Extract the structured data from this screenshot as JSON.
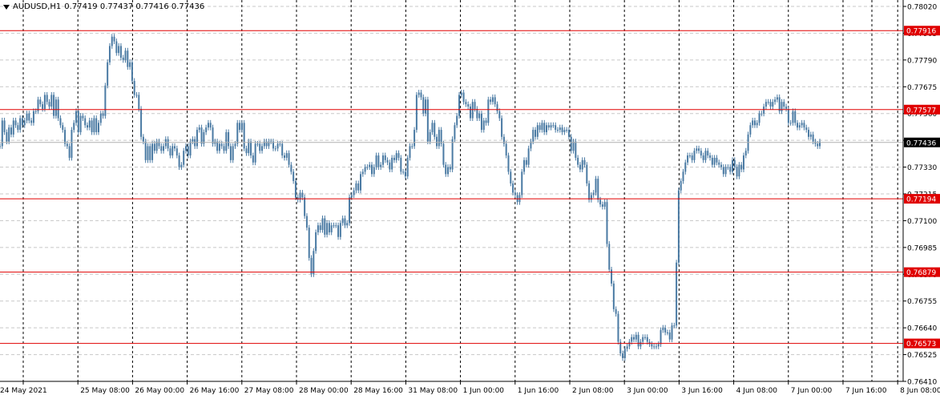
{
  "header": {
    "symbol": "AUDUSD,H1",
    "ohlc": "0.77419 0.77437 0.77416 0.77436"
  },
  "colors": {
    "background": "#ffffff",
    "grid": "#c8c8c8",
    "candle": "#4a7aa3",
    "level_line": "#e00000",
    "price_tag": "#000000",
    "axis": "#000000"
  },
  "chart_data": {
    "type": "candlestick",
    "symbol": "AUDUSD",
    "timeframe": "H1",
    "grid": true,
    "ylim": [
      0.7641,
      0.7802
    ],
    "y_ticks": [
      "0.78020",
      "0.77905",
      "0.77790",
      "0.77675",
      "0.77560",
      "0.77445",
      "0.77330",
      "0.77215",
      "0.77100",
      "0.76985",
      "0.76870",
      "0.76755",
      "0.76640",
      "0.76525",
      "0.76410"
    ],
    "x_ticks": [
      "24 May 2021",
      "25 May 08:00",
      "26 May 00:00",
      "26 May 16:00",
      "27 May 08:00",
      "28 May 00:00",
      "28 May 16:00",
      "31 May 08:00",
      "1 Jun 00:00",
      "1 Jun 16:00",
      "2 Jun 08:00",
      "3 Jun 00:00",
      "3 Jun 16:00",
      "4 Jun 08:00",
      "7 Jun 00:00",
      "7 Jun 16:00",
      "8 Jun 08:00"
    ],
    "current_price": "0.77436",
    "levels": [
      "0.77916",
      "0.77577",
      "0.77194",
      "0.76879",
      "0.76573"
    ],
    "series": [
      {
        "close": [
          0.7742,
          0.7753,
          0.7748,
          0.7744,
          0.775,
          0.7747,
          0.7753,
          0.7751,
          0.7749,
          0.7754,
          0.7751,
          0.7753,
          0.7756,
          0.7753,
          0.7752,
          0.7757,
          0.7757,
          0.7762,
          0.776,
          0.7758,
          0.7764,
          0.7761,
          0.7759,
          0.7764,
          0.7755,
          0.7762,
          0.7754,
          0.7751,
          0.7749,
          0.7743,
          0.7742,
          0.7737,
          0.7749,
          0.7752,
          0.7757,
          0.7748,
          0.7755,
          0.7754,
          0.7751,
          0.775,
          0.7753,
          0.7748,
          0.7754,
          0.7748,
          0.7752,
          0.7756,
          0.7755,
          0.7768,
          0.7778,
          0.7785,
          0.7789,
          0.7787,
          0.7782,
          0.7785,
          0.778,
          0.7779,
          0.7783,
          0.7776,
          0.7778,
          0.777,
          0.7764,
          0.7764,
          0.7758,
          0.7746,
          0.7744,
          0.7736,
          0.7742,
          0.7736,
          0.7743,
          0.774,
          0.7744,
          0.7742,
          0.774,
          0.7742,
          0.7745,
          0.7741,
          0.7738,
          0.7742,
          0.7741,
          0.7738,
          0.7733,
          0.7734,
          0.774,
          0.7742,
          0.7738,
          0.7744,
          0.7745,
          0.7742,
          0.7749,
          0.775,
          0.7743,
          0.7748,
          0.775,
          0.7752,
          0.775,
          0.7743,
          0.7744,
          0.774,
          0.7743,
          0.7742,
          0.774,
          0.7748,
          0.7742,
          0.7736,
          0.7742,
          0.7743,
          0.7752,
          0.7749,
          0.7752,
          0.7741,
          0.7739,
          0.7744,
          0.7738,
          0.7735,
          0.7743,
          0.7743,
          0.774,
          0.7742,
          0.7744,
          0.7742,
          0.7744,
          0.7744,
          0.7741,
          0.7741,
          0.7743,
          0.7743,
          0.7738,
          0.7737,
          0.7739,
          0.7734,
          0.7731,
          0.7727,
          0.772,
          0.7719,
          0.7722,
          0.772,
          0.7712,
          0.7707,
          0.7694,
          0.7687,
          0.7697,
          0.7705,
          0.7708,
          0.7706,
          0.7711,
          0.7704,
          0.7709,
          0.7705,
          0.7708,
          0.7708,
          0.7708,
          0.7703,
          0.7709,
          0.7711,
          0.7708,
          0.7709,
          0.772,
          0.7721,
          0.7723,
          0.7726,
          0.7723,
          0.773,
          0.7731,
          0.7733,
          0.7733,
          0.7734,
          0.773,
          0.7733,
          0.7738,
          0.7733,
          0.7734,
          0.7738,
          0.7736,
          0.7735,
          0.7732,
          0.7737,
          0.7736,
          0.7739,
          0.7737,
          0.7731,
          0.7731,
          0.7729,
          0.7737,
          0.7742,
          0.7742,
          0.7749,
          0.7764,
          0.7765,
          0.7763,
          0.7756,
          0.7762,
          0.7744,
          0.7748,
          0.7752,
          0.7746,
          0.7742,
          0.7749,
          0.7743,
          0.7734,
          0.773,
          0.7733,
          0.7732,
          0.7745,
          0.7751,
          0.7755,
          0.7764,
          0.7765,
          0.7761,
          0.776,
          0.7759,
          0.7754,
          0.7761,
          0.7758,
          0.7754,
          0.7756,
          0.7749,
          0.7753,
          0.7752,
          0.7762,
          0.7761,
          0.7763,
          0.776,
          0.7757,
          0.7754,
          0.7746,
          0.7743,
          0.7738,
          0.7731,
          0.7726,
          0.7722,
          0.7721,
          0.7718,
          0.7721,
          0.7731,
          0.7736,
          0.7734,
          0.7741,
          0.7744,
          0.7749,
          0.7746,
          0.7751,
          0.7749,
          0.7752,
          0.7748,
          0.7751,
          0.775,
          0.7751,
          0.7751,
          0.7749,
          0.7749,
          0.775,
          0.7748,
          0.7749,
          0.7749,
          0.7746,
          0.774,
          0.7744,
          0.7737,
          0.7734,
          0.7732,
          0.7736,
          0.7734,
          0.7726,
          0.7719,
          0.7721,
          0.7722,
          0.7728,
          0.7719,
          0.7717,
          0.7716,
          0.7718,
          0.77,
          0.7689,
          0.7683,
          0.7672,
          0.767,
          0.7658,
          0.7653,
          0.7651,
          0.7655,
          0.7656,
          0.7658,
          0.766,
          0.7659,
          0.7661,
          0.7656,
          0.7658,
          0.766,
          0.766,
          0.7658,
          0.7657,
          0.7656,
          0.7656,
          0.7656,
          0.7657,
          0.7663,
          0.7664,
          0.7662,
          0.7662,
          0.7659,
          0.7665,
          0.7665,
          0.7692,
          0.7723,
          0.7727,
          0.7731,
          0.7735,
          0.7738,
          0.7738,
          0.7736,
          0.774,
          0.7741,
          0.774,
          0.7738,
          0.7736,
          0.774,
          0.7738,
          0.7737,
          0.7734,
          0.7737,
          0.7735,
          0.7734,
          0.7733,
          0.773,
          0.7733,
          0.7733,
          0.7731,
          0.7736,
          0.7733,
          0.7729,
          0.7734,
          0.7732,
          0.7738,
          0.774,
          0.7747,
          0.7751,
          0.7753,
          0.7751,
          0.7752,
          0.7756,
          0.7756,
          0.7759,
          0.7761,
          0.7761,
          0.7759,
          0.7761,
          0.7762,
          0.7763,
          0.7757,
          0.7761,
          0.7759,
          0.7758,
          0.7752,
          0.7752,
          0.7757,
          0.7752,
          0.775,
          0.7751,
          0.7752,
          0.775,
          0.7749,
          0.7746,
          0.7747,
          0.7744,
          0.7743,
          0.7742,
          0.7744
        ]
      }
    ]
  }
}
